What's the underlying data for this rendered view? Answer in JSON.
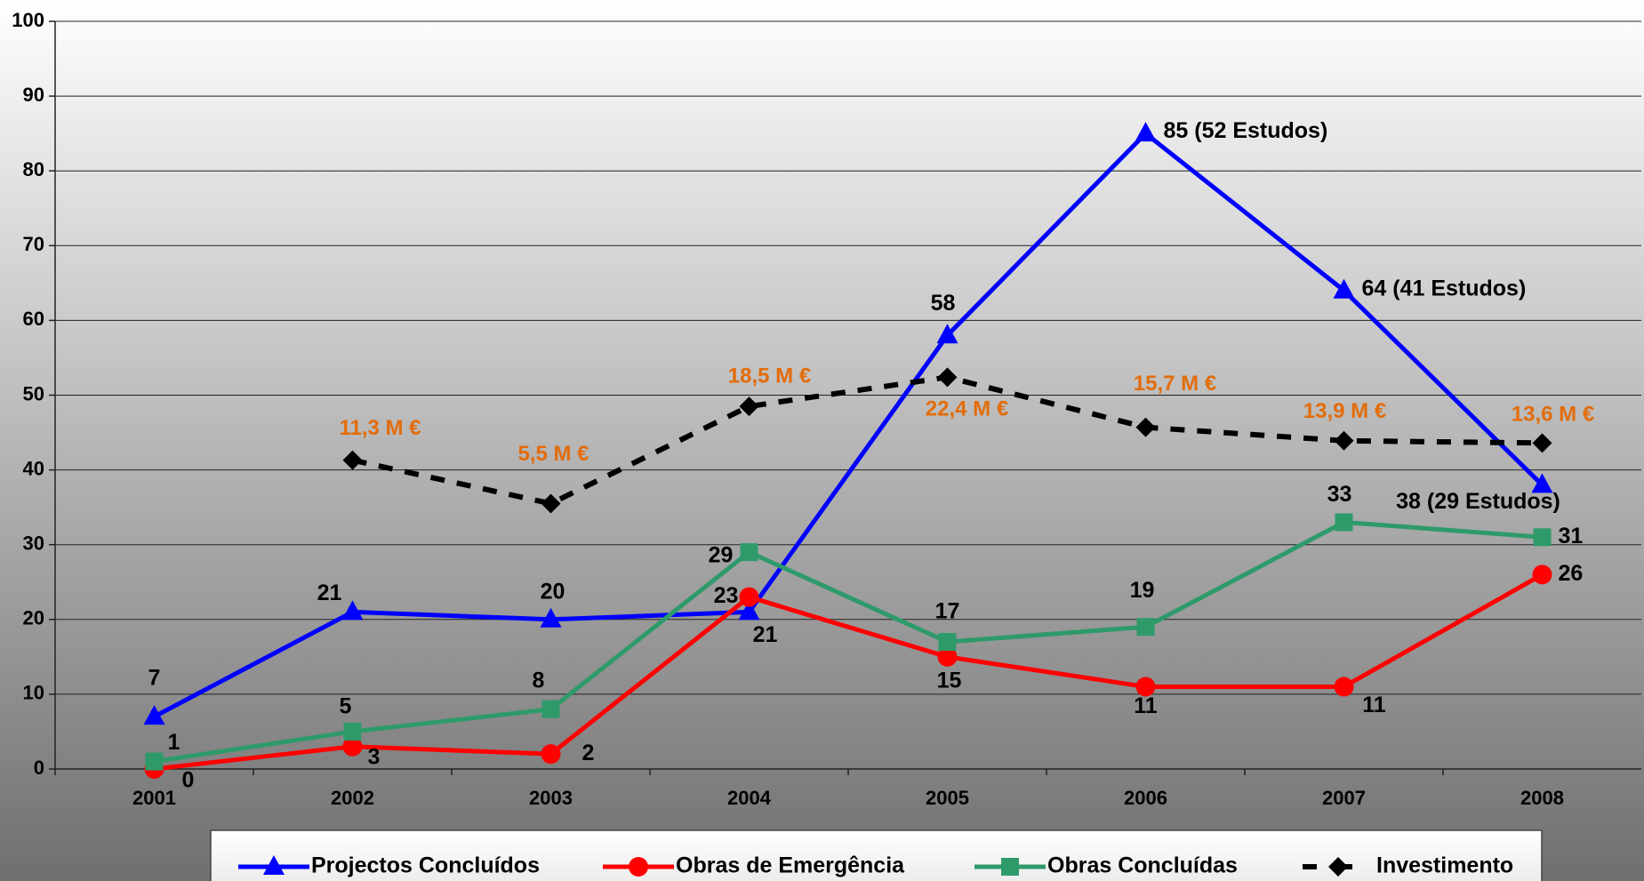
{
  "chart_data": {
    "type": "line",
    "categories": [
      "2001",
      "2002",
      "2003",
      "2004",
      "2005",
      "2006",
      "2007",
      "2008"
    ],
    "ylim": [
      0,
      100
    ],
    "yticks": [
      0,
      10,
      20,
      30,
      40,
      50,
      60,
      70,
      80,
      90,
      100
    ],
    "y2lim": [
      -30,
      70
    ],
    "grid": true,
    "legend": "bottom",
    "series": [
      {
        "name": "Projectos Concluídos",
        "color": "#0000ff",
        "marker": "triangle",
        "values": [
          7,
          21,
          20,
          21,
          58,
          85,
          64,
          38
        ],
        "value_labels": [
          "7",
          "21",
          "20",
          "21",
          "58",
          "85 (52 Estudos)",
          "64 (41 Estudos)",
          "38 (29 Estudos)"
        ]
      },
      {
        "name": "Obras de Emergência",
        "color": "#ff0000",
        "marker": "circle",
        "values": [
          0,
          3,
          2,
          23,
          15,
          11,
          11,
          26
        ]
      },
      {
        "name": "Obras Concluídas",
        "color": "#2e9a6a",
        "marker": "square",
        "values": [
          1,
          5,
          8,
          29,
          17,
          19,
          33,
          31
        ]
      },
      {
        "name": "Investimento",
        "color": "#000000",
        "marker": "diamond",
        "dashed": true,
        "axis": "y2",
        "values": [
          null,
          11.3,
          5.5,
          18.5,
          22.4,
          15.7,
          13.9,
          13.6
        ],
        "value_labels": [
          null,
          "11,3 M €",
          "5,5 M €",
          "18,5 M €",
          "22,4 M €",
          "15,7 M €",
          "13,9 M €",
          "13,6 M €"
        ]
      }
    ]
  }
}
